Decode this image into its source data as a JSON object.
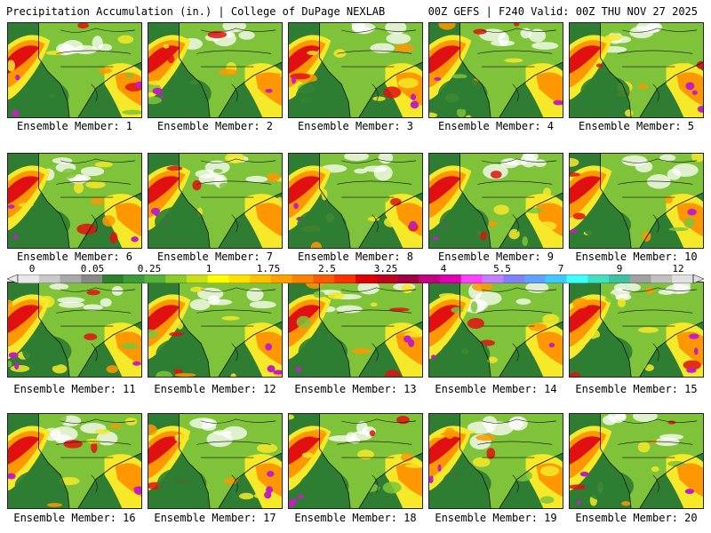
{
  "header": {
    "left_title": "Precipitation Accumulation (in.) | College of DuPage NEXLAB",
    "right_title": "00Z GEFS | F240 Valid: 00Z THU NOV 27 2025"
  },
  "panels": [
    {
      "label": "Ensemble Member: 1"
    },
    {
      "label": "Ensemble Member: 2"
    },
    {
      "label": "Ensemble Member: 3"
    },
    {
      "label": "Ensemble Member: 4"
    },
    {
      "label": "Ensemble Member: 5"
    },
    {
      "label": "Ensemble Member: 6"
    },
    {
      "label": "Ensemble Member: 7"
    },
    {
      "label": "Ensemble Member: 8"
    },
    {
      "label": "Ensemble Member: 9"
    },
    {
      "label": "Ensemble Member: 10"
    },
    {
      "label": "Ensemble Member: 11"
    },
    {
      "label": "Ensemble Member: 12"
    },
    {
      "label": "Ensemble Member: 13"
    },
    {
      "label": "Ensemble Member: 14"
    },
    {
      "label": "Ensemble Member: 15"
    },
    {
      "label": "Ensemble Member: 16"
    },
    {
      "label": "Ensemble Member: 17"
    },
    {
      "label": "Ensemble Member: 18"
    },
    {
      "label": "Ensemble Member: 19"
    },
    {
      "label": "Ensemble Member: 20"
    }
  ],
  "colorbar": {
    "tick_labels": [
      "0",
      "0.05",
      "0.25",
      "1",
      "1.75",
      "2.5",
      "3.25",
      "4",
      "5.5",
      "7",
      "9",
      "12"
    ],
    "colors": [
      "#e8e8e8",
      "#c8c8c8",
      "#a8a8a8",
      "#888888",
      "#2f7f2f",
      "#3d993d",
      "#57b33a",
      "#8ccc2a",
      "#c8e01a",
      "#ffff00",
      "#ffe000",
      "#ffc000",
      "#ffa000",
      "#ff7f00",
      "#ff5a00",
      "#ff3000",
      "#e00000",
      "#c00020",
      "#a00040",
      "#c00080",
      "#e000b0",
      "#ff40ff",
      "#c080ff",
      "#8080ff",
      "#60a0ff",
      "#40c8ff",
      "#40ffff",
      "#40e0c0",
      "#40c0a0",
      "#a0a0a0",
      "#c0c0c0",
      "#e0e0e0"
    ]
  },
  "map_colors": {
    "ocean": "#2e7d32",
    "land_dry": "#ffffff",
    "land_light": "#7fc33a",
    "yellow": "#f5e92a",
    "orange": "#ff9800",
    "red": "#e01010",
    "magenta": "#c020c0",
    "coast": "#111111"
  }
}
